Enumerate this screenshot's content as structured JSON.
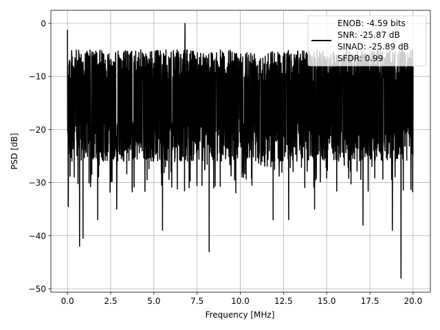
{
  "chart_data": {
    "type": "line",
    "title": "",
    "xlabel": "Frequency [MHz]",
    "ylabel": "PSD [dB]",
    "xlim": [
      -0.96,
      21.0
    ],
    "ylim": [
      -50.65,
      2.46
    ],
    "grid": true,
    "xticks": [
      0,
      2.5,
      5,
      7.5,
      10,
      12.5,
      15,
      17.5,
      20
    ],
    "xtick_labels": [
      "0.0",
      "2.5",
      "5.0",
      "7.5",
      "10.0",
      "12.5",
      "15.0",
      "17.5",
      "20.0"
    ],
    "yticks": [
      0,
      -10,
      -20,
      -30,
      -40,
      -50
    ],
    "ytick_labels": [
      "0",
      "−10",
      "−20",
      "−30",
      "−40",
      "−50"
    ],
    "legend": {
      "placement": "upper-right",
      "entries": [
        "ENOB: -4.59 bits",
        "SNR: -25.87 dB",
        "SINAD: -25.89 dB",
        "SFDR: 0.99"
      ]
    },
    "series": [
      {
        "name": "PSD",
        "color": "#000000",
        "x_range": [
          0,
          20
        ],
        "noise_band_db": [
          -5,
          -26
        ],
        "noise_mean_db": -15,
        "notable_points": [
          [
            0.0,
            -1.2
          ],
          [
            0.05,
            -34.5
          ],
          [
            0.7,
            -42
          ],
          [
            0.9,
            -40.5
          ],
          [
            1.75,
            -37
          ],
          [
            2.85,
            -35
          ],
          [
            5.5,
            -39
          ],
          [
            6.8,
            0
          ],
          [
            8.2,
            -43
          ],
          [
            11.9,
            -37
          ],
          [
            12.8,
            -37
          ],
          [
            14.3,
            -35
          ],
          [
            17.1,
            -38
          ],
          [
            18.8,
            -39
          ],
          [
            19.3,
            -48
          ]
        ]
      }
    ]
  }
}
